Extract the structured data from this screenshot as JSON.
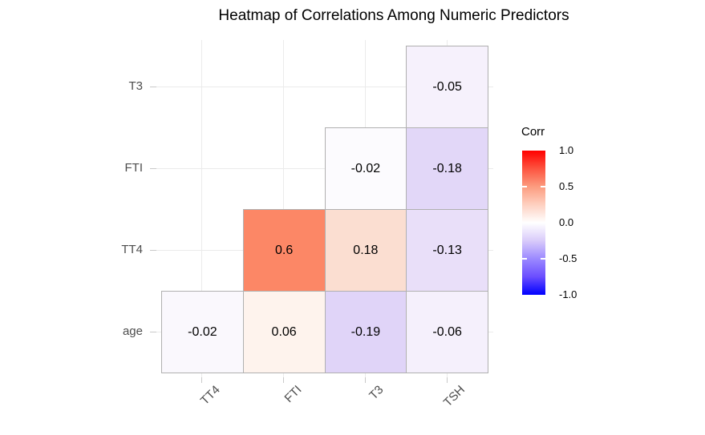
{
  "title": "Heatmap of Correlations Among Numeric Predictors",
  "chart_data": {
    "type": "heatmap",
    "title": "Heatmap of Correlations Among Numeric Predictors",
    "x_categories": [
      "TT4",
      "FTI",
      "T3",
      "TSH"
    ],
    "y_categories_top_to_bottom": [
      "T3",
      "FTI",
      "TT4",
      "age"
    ],
    "grid": true,
    "cells": [
      {
        "row": "T3",
        "col": "TSH",
        "value": -0.05,
        "label": "-0.05",
        "fill": "#F6F1FC"
      },
      {
        "row": "FTI",
        "col": "T3",
        "value": -0.02,
        "label": "-0.02",
        "fill": "#FCFBFE"
      },
      {
        "row": "FTI",
        "col": "TSH",
        "value": -0.18,
        "label": "-0.18",
        "fill": "#E2D7F8"
      },
      {
        "row": "TT4",
        "col": "FTI",
        "value": 0.6,
        "label": "0.6",
        "fill": "#FC8766"
      },
      {
        "row": "TT4",
        "col": "T3",
        "value": 0.18,
        "label": "0.18",
        "fill": "#FBDED1"
      },
      {
        "row": "TT4",
        "col": "TSH",
        "value": -0.13,
        "label": "-0.13",
        "fill": "#E9DFF9"
      },
      {
        "row": "age",
        "col": "TT4",
        "value": -0.02,
        "label": "-0.02",
        "fill": "#FAF8FD"
      },
      {
        "row": "age",
        "col": "FTI",
        "value": 0.06,
        "label": "0.06",
        "fill": "#FEF3ED"
      },
      {
        "row": "age",
        "col": "T3",
        "value": -0.19,
        "label": "-0.19",
        "fill": "#E0D4F8"
      },
      {
        "row": "age",
        "col": "TSH",
        "value": -0.06,
        "label": "-0.06",
        "fill": "#F5F0FC"
      }
    ],
    "legend": {
      "title": "Corr",
      "position": "right",
      "range": [
        -1.0,
        1.0
      ],
      "tick_labels": [
        "1.0",
        "0.5",
        "0.0",
        "-0.5",
        "-1.0"
      ],
      "tick_values": [
        1.0,
        0.5,
        0.0,
        -0.5,
        -1.0
      ],
      "inner_tick_values": [
        0.5,
        -0.5
      ],
      "high_color": "#FF0000",
      "mid_color": "#FFFFFF",
      "low_color": "#0000FF",
      "gradient_stops": [
        {
          "pos": 0.0,
          "color": "#FF0000"
        },
        {
          "pos": 0.125,
          "color": "#FD5440"
        },
        {
          "pos": 0.25,
          "color": "#FC9C7F"
        },
        {
          "pos": 0.375,
          "color": "#FED0C0"
        },
        {
          "pos": 0.5,
          "color": "#FFFFFF"
        },
        {
          "pos": 0.625,
          "color": "#D9CBFA"
        },
        {
          "pos": 0.75,
          "color": "#9B89FF"
        },
        {
          "pos": 0.875,
          "color": "#6B4EFF"
        },
        {
          "pos": 1.0,
          "color": "#0000FF"
        }
      ]
    },
    "style": {
      "cell_border_color": "#B0B0B0",
      "gridline_color": "#EBEBEB",
      "axis_tick_color": "#C9C9C9",
      "axis_text_color": "#4D4D4D",
      "cell_text_color": "#000000",
      "title_color": "#000000",
      "background": "#FFFFFF"
    }
  }
}
